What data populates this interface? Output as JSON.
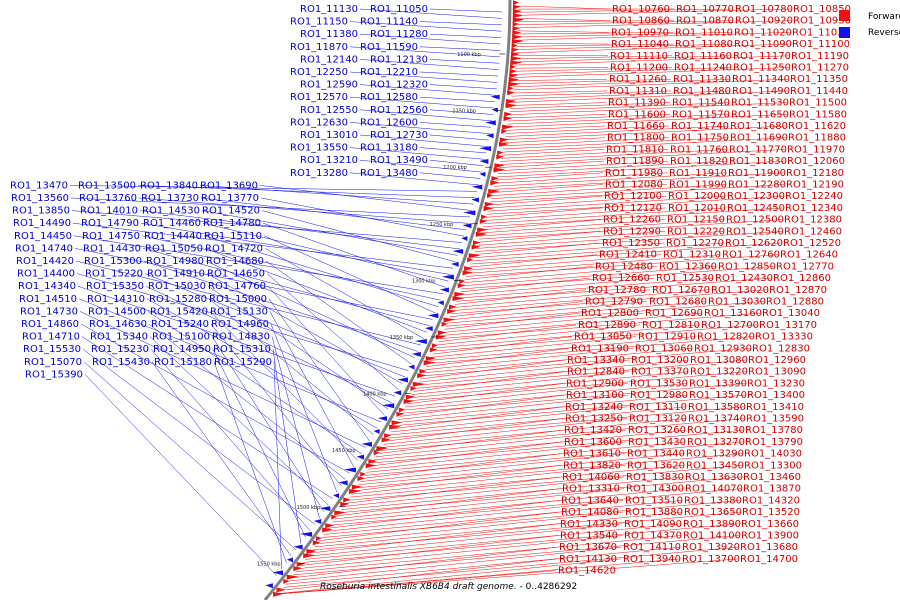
{
  "caption": {
    "title_italic": "Roseburia intestinalis XB6B4 draft genome.",
    "range": " - 0..4286292"
  },
  "legend": [
    {
      "label": "Forward",
      "color": "#ee1111"
    },
    {
      "label": "Reverse",
      "color": "#1111ee"
    }
  ],
  "colors": {
    "forward": "#ee1111",
    "reverse": "#1111ee",
    "backbone": "#808080",
    "tick": "#000000"
  },
  "ruler_ticks": [
    "1100 kbp",
    "1150 kbp",
    "1200 kbp",
    "1250 kbp",
    "1300 kbp",
    "1350 kbp",
    "1400 kbp",
    "1450 kbp",
    "1500 kbp",
    "1550 kbp"
  ],
  "forward_labels": [
    "RO1_10760",
    "RO1_10770",
    "RO1_10780",
    "RO1_10850",
    "RO1_10860",
    "RO1_10870",
    "RO1_10920",
    "RO1_10930",
    "RO1_10970",
    "RO1_11010",
    "RO1_11020",
    "RO1_11030",
    "RO1_11040",
    "RO1_11080",
    "RO1_11090",
    "RO1_11100",
    "RO1_11110",
    "RO1_11160",
    "RO1_11170",
    "RO1_11190",
    "RO1_11200",
    "RO1_11240",
    "RO1_11250",
    "RO1_11270",
    "RO1_11260",
    "RO1_11330",
    "RO1_11340",
    "RO1_11350",
    "RO1_11310",
    "RO1_11480",
    "RO1_11490",
    "RO1_11440",
    "RO1_11390",
    "RO1_11540",
    "RO1_11530",
    "RO1_11500",
    "RO1_11600",
    "RO1_11570",
    "RO1_11650",
    "RO1_11580",
    "RO1_11660",
    "RO1_11740",
    "RO1_11680",
    "RO1_11620",
    "RO1_11800",
    "RO1_11750",
    "RO1_11690",
    "RO1_11880",
    "RO1_11810",
    "RO1_11760",
    "RO1_11770",
    "RO1_11970",
    "RO1_11890",
    "RO1_11820",
    "RO1_11830",
    "RO1_12060",
    "RO1_11980",
    "RO1_11910",
    "RO1_11900",
    "RO1_12180",
    "RO1_12080",
    "RO1_11990",
    "RO1_12280",
    "RO1_12190",
    "RO1_12100",
    "RO1_12000",
    "RO1_12300",
    "RO1_12240",
    "RO1_12120",
    "RO1_12010",
    "RO1_12450",
    "RO1_12340",
    "RO1_12260",
    "RO1_12150",
    "RO1_12500",
    "RO1_12380",
    "RO1_12290",
    "RO1_12220",
    "RO1_12540",
    "RO1_12460",
    "RO1_12350",
    "RO1_12270",
    "RO1_12620",
    "RO1_12520",
    "RO1_12410",
    "RO1_12310",
    "RO1_12760",
    "RO1_12640",
    "RO1_12480",
    "RO1_12360",
    "RO1_12850",
    "RO1_12770",
    "RO1_12660",
    "RO1_12530",
    "RO1_12430",
    "RO1_12860",
    "RO1_12780",
    "RO1_12670",
    "RO1_13020",
    "RO1_12870",
    "RO1_12790",
    "RO1_12680",
    "RO1_13030",
    "RO1_12880",
    "RO1_12800",
    "RO1_12690",
    "RO1_13160",
    "RO1_13040",
    "RO1_12890",
    "RO1_12810",
    "RO1_12700",
    "RO1_13170",
    "RO1_13050",
    "RO1_12910",
    "RO1_12820",
    "RO1_13330",
    "RO1_13190",
    "RO1_13060",
    "RO1_12930",
    "RO1_12830",
    "RO1_13340",
    "RO1_13200",
    "RO1_13080",
    "RO1_12960",
    "RO1_12840",
    "RO1_13370",
    "RO1_13220",
    "RO1_13090",
    "RO1_12900",
    "RO1_13530",
    "RO1_13390",
    "RO1_13230",
    "RO1_13100",
    "RO1_12980",
    "RO1_13570",
    "RO1_13400",
    "RO1_13240",
    "RO1_13110",
    "RO1_13580",
    "RO1_13410",
    "RO1_13250",
    "RO1_13120",
    "RO1_13740",
    "RO1_13590",
    "RO1_13420",
    "RO1_13260",
    "RO1_13130",
    "RO1_13780",
    "RO1_13600",
    "RO1_13430",
    "RO1_13270",
    "RO1_13790",
    "RO1_13610",
    "RO1_13440",
    "RO1_13290",
    "RO1_14030",
    "RO1_13820",
    "RO1_13620",
    "RO1_13450",
    "RO1_13300",
    "RO1_14060",
    "RO1_13830",
    "RO1_13630",
    "RO1_13460",
    "RO1_13310",
    "RO1_14300",
    "RO1_14070",
    "RO1_13870",
    "RO1_13640",
    "RO1_13510",
    "RO1_13380",
    "RO1_14320",
    "RO1_14080",
    "RO1_13880",
    "RO1_13650",
    "RO1_13520",
    "RO1_14330",
    "RO1_14090",
    "RO1_13890",
    "RO1_13660",
    "RO1_13540",
    "RO1_14370",
    "RO1_14100",
    "RO1_13900",
    "RO1_13670",
    "RO1_14110",
    "RO1_13920",
    "RO1_13680",
    "RO1_14130",
    "RO1_13940",
    "RO1_13700",
    "RO1_14700",
    "RO1_14620"
  ],
  "reverse_labels": [
    "RO1_11050",
    "RO1_11130",
    "RO1_11140",
    "RO1_11150",
    "RO1_11280",
    "RO1_11380",
    "RO1_11590",
    "RO1_11870",
    "RO1_12130",
    "RO1_12140",
    "RO1_12210",
    "RO1_12250",
    "RO1_12320",
    "RO1_12590",
    "RO1_12580",
    "RO1_12570",
    "RO1_12560",
    "RO1_12550",
    "RO1_12600",
    "RO1_12630",
    "RO1_12730",
    "RO1_13010",
    "RO1_13180",
    "RO1_13550",
    "RO1_13490",
    "RO1_13210",
    "RO1_13480",
    "RO1_13280",
    "RO1_13470",
    "RO1_13500",
    "RO1_13840",
    "RO1_13690",
    "RO1_13560",
    "RO1_13760",
    "RO1_13730",
    "RO1_13770",
    "RO1_13850",
    "RO1_14010",
    "RO1_14530",
    "RO1_14520",
    "RO1_14490",
    "RO1_14790",
    "RO1_14460",
    "RO1_14780",
    "RO1_14450",
    "RO1_14750",
    "RO1_14440",
    "RO1_15110",
    "RO1_14740",
    "RO1_14430",
    "RO1_15050",
    "RO1_14720",
    "RO1_14420",
    "RO1_15300",
    "RO1_14980",
    "RO1_14680",
    "RO1_14400",
    "RO1_15220",
    "RO1_14910",
    "RO1_14650",
    "RO1_14340",
    "RO1_15350",
    "RO1_15030",
    "RO1_14760",
    "RO1_14510",
    "RO1_14310",
    "RO1_15280",
    "RO1_15000",
    "RO1_14730",
    "RO1_14500",
    "RO1_15420",
    "RO1_15130",
    "RO1_14860",
    "RO1_14630",
    "RO1_15240",
    "RO1_14960",
    "RO1_14710",
    "RO1_15340",
    "RO1_15100",
    "RO1_14830",
    "RO1_15530",
    "RO1_15230",
    "RO1_14950",
    "RO1_15310",
    "RO1_15070",
    "RO1_15430",
    "RO1_15180",
    "RO1_15290",
    "RO1_15390"
  ]
}
